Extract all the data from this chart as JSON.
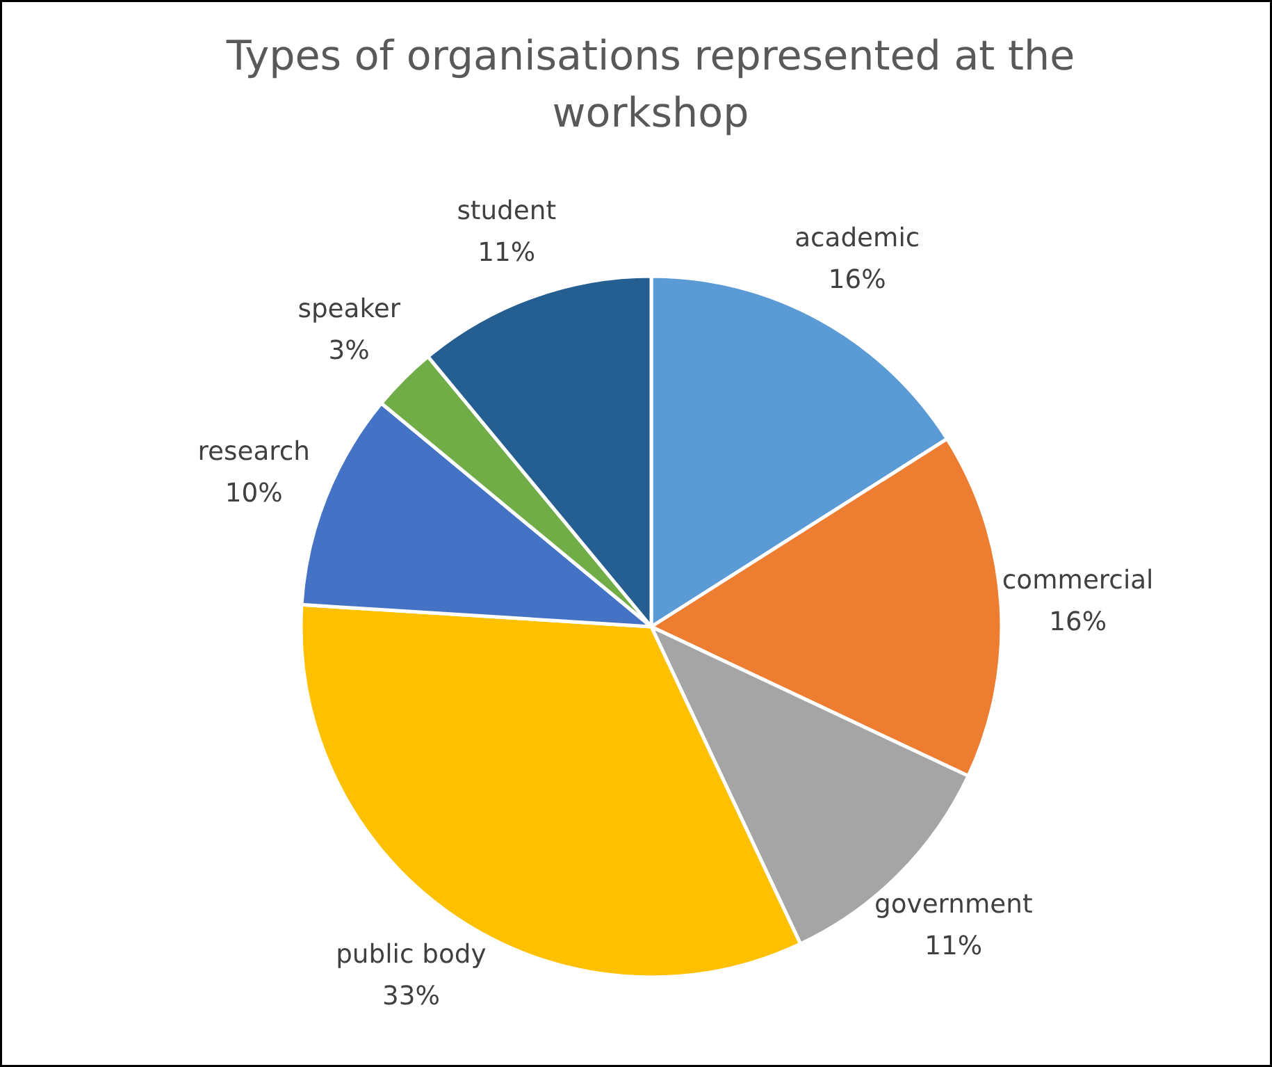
{
  "chart_data": {
    "type": "pie",
    "title": "Types of organisations represented at the workshop",
    "categories": [
      "academic",
      "commercial",
      "government",
      "public body",
      "research",
      "speaker",
      "student"
    ],
    "values": [
      16,
      16,
      11,
      33,
      10,
      3,
      11
    ],
    "value_labels": [
      "16%",
      "16%",
      "11%",
      "33%",
      "10%",
      "3%",
      "11%"
    ],
    "colors": [
      "#5b9bd5",
      "#ed7d31",
      "#a5a5a5",
      "#ffc000",
      "#4472c4",
      "#70ad47",
      "#255e91"
    ]
  }
}
